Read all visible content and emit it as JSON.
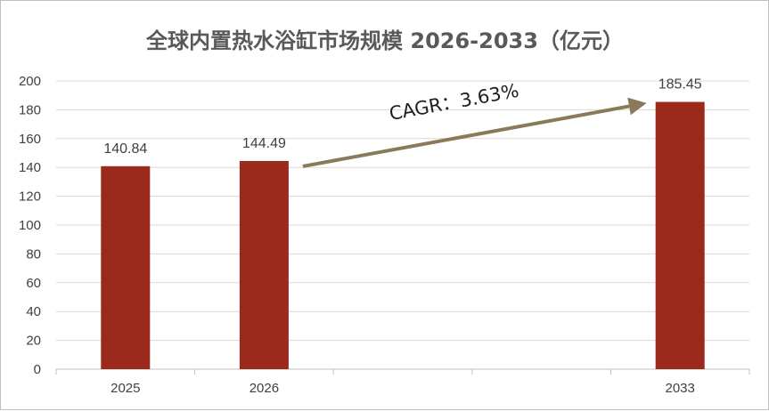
{
  "chart_data": {
    "type": "bar",
    "title": "全球内置热水浴缸市场规模 2026-2033（亿元）",
    "categories": [
      "2025",
      "2026",
      "",
      "",
      "2033"
    ],
    "values": [
      140.84,
      144.49,
      null,
      null,
      185.45
    ],
    "data_labels": [
      "140.84",
      "144.49",
      "",
      "",
      "185.45"
    ],
    "xlabel": "",
    "ylabel": "",
    "ylim": [
      0,
      200
    ],
    "yticks": [
      0,
      20,
      40,
      60,
      80,
      100,
      120,
      140,
      160,
      180,
      200
    ],
    "grid": true,
    "legend": "none",
    "bar_color": "#9b2a1d",
    "annotation": {
      "text": "CAGR：3.63%",
      "from_category_index": 1,
      "to_category_index": 4,
      "arrow_color": "#8b7a5a"
    }
  }
}
